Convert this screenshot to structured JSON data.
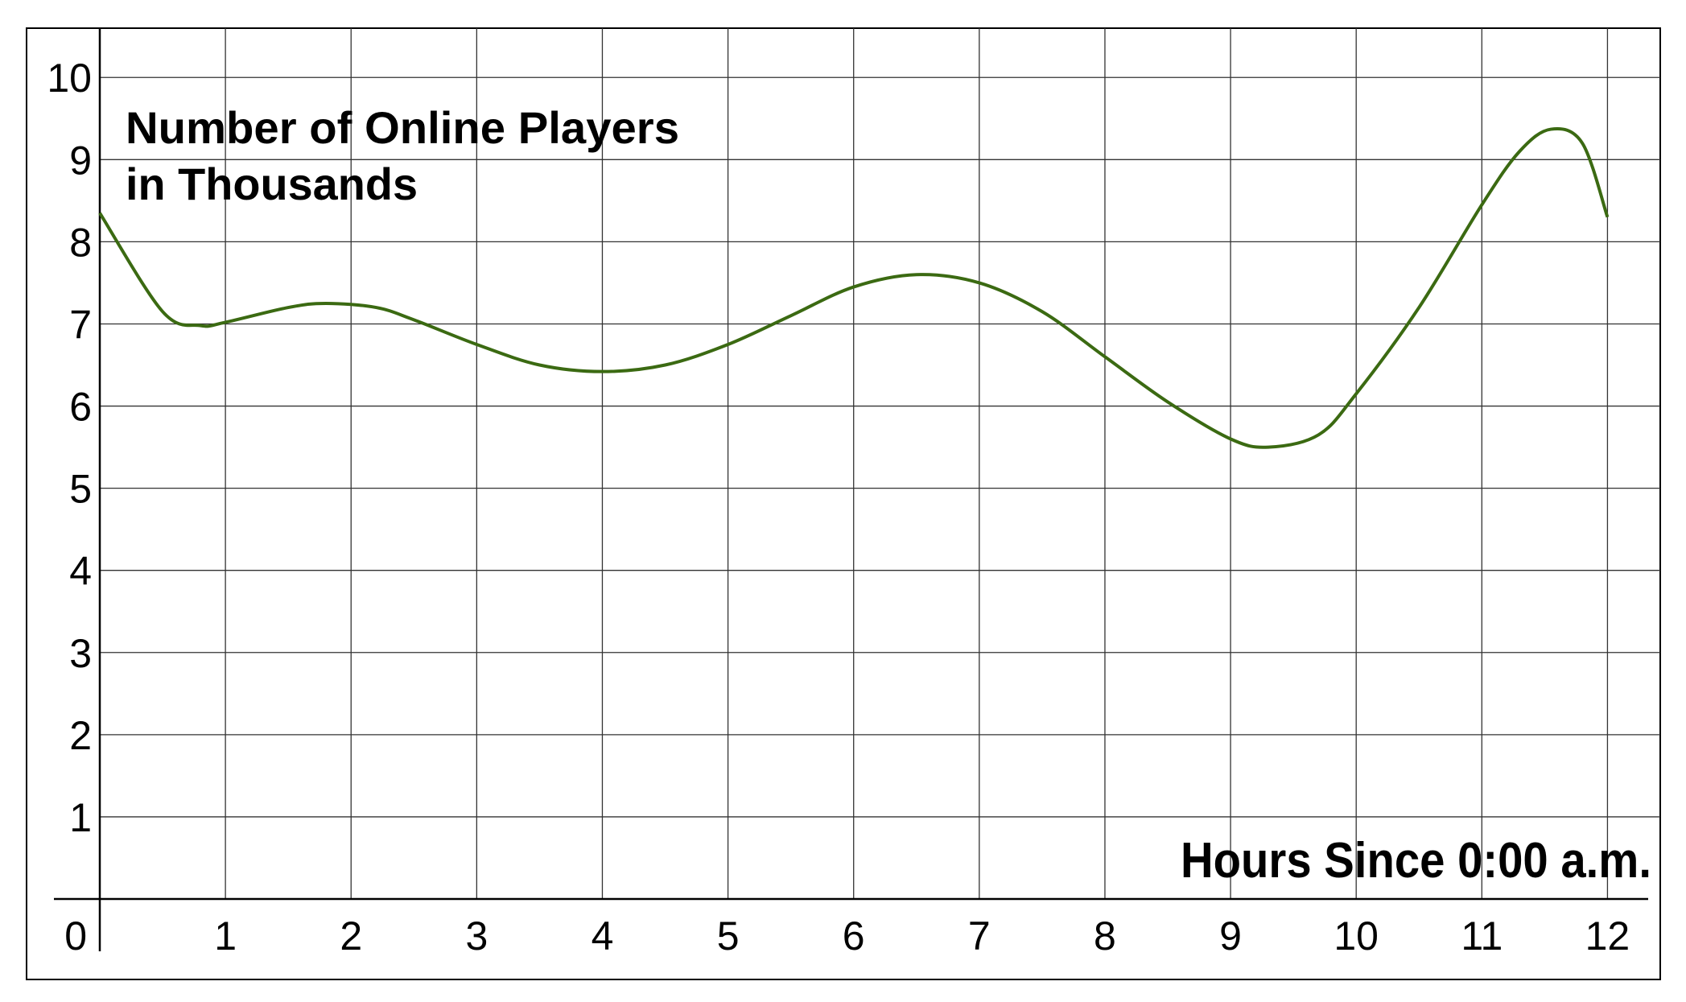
{
  "chart_data": {
    "type": "line",
    "ylabel": [
      "Number of Online Players",
      "in Thousands"
    ],
    "xlabel": "Hours Since 0:00 a.m.",
    "x": [
      0,
      0.5,
      0.8,
      1,
      1.5,
      1.8,
      2.2,
      2.5,
      3,
      3.5,
      4,
      4.5,
      5,
      5.5,
      6,
      6.5,
      7,
      7.5,
      8,
      8.5,
      9,
      9.3,
      9.7,
      10,
      10.5,
      11,
      11.3,
      11.55,
      11.8,
      12
    ],
    "series": [
      {
        "color": "#3b6a12",
        "values": [
          8.35,
          7.15,
          6.98,
          7.02,
          7.2,
          7.25,
          7.2,
          7.05,
          6.75,
          6.5,
          6.42,
          6.5,
          6.75,
          7.1,
          7.45,
          7.6,
          7.5,
          7.15,
          6.6,
          6.05,
          5.6,
          5.5,
          5.65,
          6.15,
          7.2,
          8.45,
          9.1,
          9.37,
          9.2,
          8.3
        ]
      }
    ],
    "xlim": [
      0,
      12.42
    ],
    "ylim": [
      0,
      10.6
    ],
    "xticks": [
      0,
      1,
      2,
      3,
      4,
      5,
      6,
      7,
      8,
      9,
      10,
      11,
      12
    ],
    "yticks": [
      1,
      2,
      3,
      4,
      5,
      6,
      7,
      8,
      9,
      10
    ],
    "grid": true
  }
}
